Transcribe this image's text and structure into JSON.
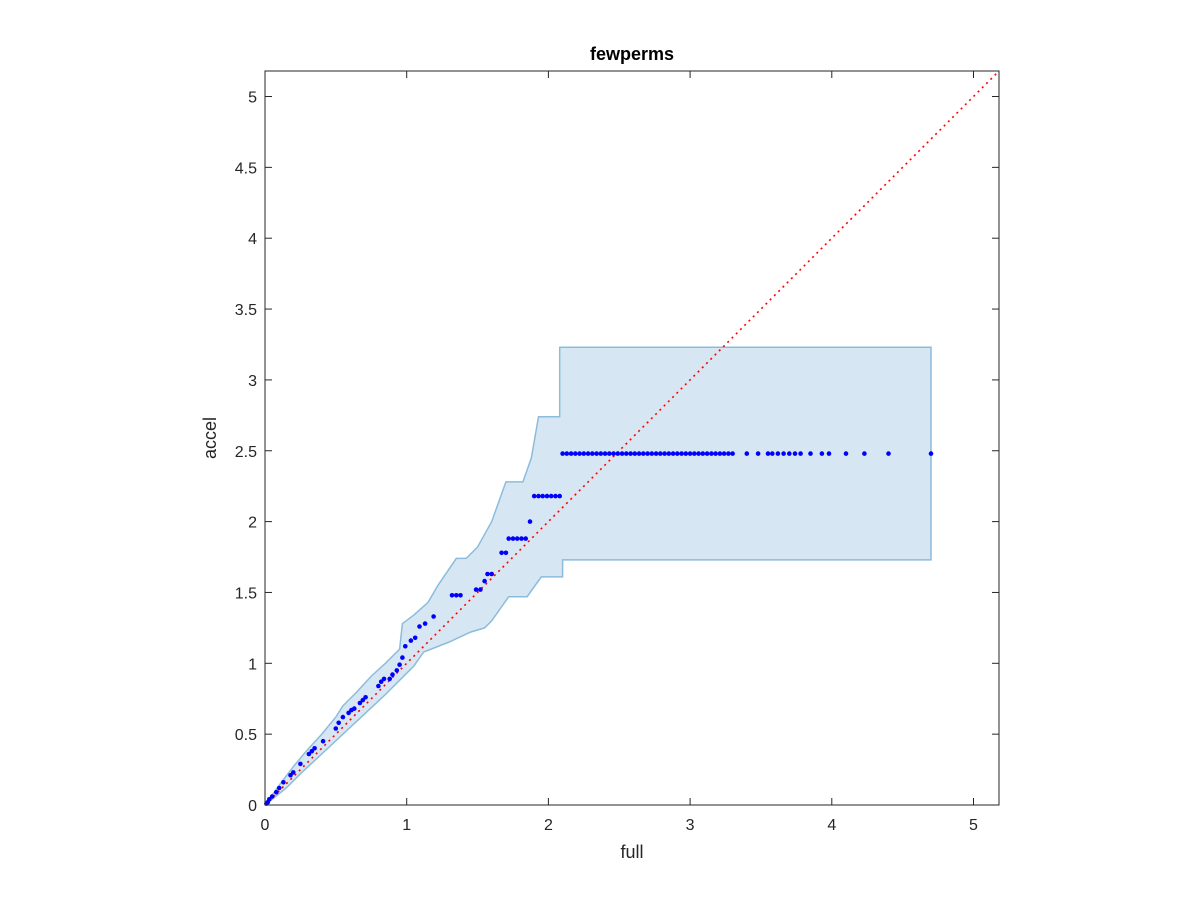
{
  "chart_data": {
    "type": "scatter",
    "title": "fewperms",
    "xlabel": "full",
    "ylabel": "accel",
    "xlim": [
      0,
      5.18
    ],
    "ylim": [
      0,
      5.18
    ],
    "xticks": [
      0,
      1,
      2,
      3,
      4,
      5
    ],
    "yticks": [
      0,
      0.5,
      1,
      1.5,
      2,
      2.5,
      3,
      3.5,
      4,
      4.5,
      5
    ],
    "xtick_labels": [
      "0",
      "1",
      "2",
      "3",
      "4",
      "5"
    ],
    "ytick_labels": [
      "0",
      "0.5",
      "1",
      "1.5",
      "2",
      "2.5",
      "3",
      "3.5",
      "4",
      "4.5",
      "5"
    ],
    "grid": false,
    "colors": {
      "points": "#0000ff",
      "band_fill": "#d6e7f3",
      "band_edge": "#8cbcdc",
      "diagonal": "#ff0000",
      "axes": "#262626"
    },
    "diagonal": {
      "x": [
        0,
        5.18
      ],
      "y": [
        0,
        5.18
      ],
      "style": "dotted"
    },
    "band": {
      "upper": [
        [
          0,
          0
        ],
        [
          0.05,
          0.07
        ],
        [
          0.1,
          0.14
        ],
        [
          0.2,
          0.27
        ],
        [
          0.3,
          0.39
        ],
        [
          0.4,
          0.5
        ],
        [
          0.5,
          0.62
        ],
        [
          0.55,
          0.7
        ],
        [
          0.65,
          0.8
        ],
        [
          0.75,
          0.91
        ],
        [
          0.85,
          1.0
        ],
        [
          0.95,
          1.1
        ],
        [
          0.97,
          1.28
        ],
        [
          1.05,
          1.34
        ],
        [
          1.15,
          1.43
        ],
        [
          1.22,
          1.55
        ],
        [
          1.35,
          1.74
        ],
        [
          1.42,
          1.74
        ],
        [
          1.5,
          1.82
        ],
        [
          1.6,
          2.0
        ],
        [
          1.7,
          2.28
        ],
        [
          1.82,
          2.28
        ],
        [
          1.88,
          2.45
        ],
        [
          1.93,
          2.74
        ],
        [
          2.08,
          2.74
        ],
        [
          2.08,
          3.23
        ],
        [
          4.7,
          3.23
        ]
      ],
      "lower": [
        [
          4.7,
          1.73
        ],
        [
          2.1,
          1.73
        ],
        [
          2.1,
          1.61
        ],
        [
          1.95,
          1.61
        ],
        [
          1.85,
          1.47
        ],
        [
          1.72,
          1.47
        ],
        [
          1.6,
          1.3
        ],
        [
          1.55,
          1.25
        ],
        [
          1.45,
          1.22
        ],
        [
          1.3,
          1.15
        ],
        [
          1.12,
          1.08
        ],
        [
          1.05,
          0.98
        ],
        [
          0.95,
          0.88
        ],
        [
          0.85,
          0.78
        ],
        [
          0.7,
          0.64
        ],
        [
          0.55,
          0.5
        ],
        [
          0.4,
          0.36
        ],
        [
          0.25,
          0.22
        ],
        [
          0.15,
          0.12
        ],
        [
          0.05,
          0.04
        ],
        [
          0,
          0
        ]
      ]
    },
    "series": [
      {
        "x": [
          0.01,
          0.02,
          0.03,
          0.05,
          0.08,
          0.1,
          0.13,
          0.18,
          0.2,
          0.25,
          0.31,
          0.33,
          0.35,
          0.41,
          0.5,
          0.52,
          0.55,
          0.59,
          0.61,
          0.63,
          0.67,
          0.69,
          0.71,
          0.8,
          0.82,
          0.84,
          0.88,
          0.9,
          0.93,
          0.95,
          0.97,
          0.99,
          1.03,
          1.06,
          1.09,
          1.13,
          1.19,
          1.32,
          1.35,
          1.38,
          1.49,
          1.52,
          1.55,
          1.57,
          1.6,
          1.67,
          1.7,
          1.72,
          1.75,
          1.78,
          1.81,
          1.84,
          1.87,
          1.9,
          1.93,
          1.96,
          1.99,
          2.02,
          2.05,
          2.08
        ],
        "y": [
          0.01,
          0.02,
          0.04,
          0.06,
          0.09,
          0.12,
          0.16,
          0.21,
          0.23,
          0.29,
          0.36,
          0.38,
          0.4,
          0.45,
          0.54,
          0.58,
          0.62,
          0.65,
          0.67,
          0.68,
          0.72,
          0.74,
          0.76,
          0.84,
          0.87,
          0.89,
          0.89,
          0.92,
          0.95,
          0.99,
          1.04,
          1.12,
          1.16,
          1.18,
          1.26,
          1.28,
          1.33,
          1.48,
          1.48,
          1.48,
          1.52,
          1.52,
          1.58,
          1.63,
          1.63,
          1.78,
          1.78,
          1.88,
          1.88,
          1.88,
          1.88,
          1.88,
          2.0,
          2.18,
          2.18,
          2.18,
          2.18,
          2.18,
          2.18,
          2.18
        ]
      },
      {
        "x": [
          2.1,
          2.13,
          2.16,
          2.19,
          2.22,
          2.25,
          2.28,
          2.31,
          2.34,
          2.37,
          2.4,
          2.43,
          2.46,
          2.49,
          2.52,
          2.55,
          2.58,
          2.61,
          2.64,
          2.67,
          2.7,
          2.73,
          2.76,
          2.79,
          2.82,
          2.85,
          2.88,
          2.91,
          2.94,
          2.97,
          3.0,
          3.03,
          3.06,
          3.09,
          3.12,
          3.15,
          3.18,
          3.21,
          3.24,
          3.27,
          3.3,
          3.4,
          3.48,
          3.55,
          3.58,
          3.62,
          3.66,
          3.7,
          3.74,
          3.78,
          3.85,
          3.93,
          3.98,
          4.1,
          4.23,
          4.4,
          4.7
        ],
        "y": [
          2.48,
          2.48,
          2.48,
          2.48,
          2.48,
          2.48,
          2.48,
          2.48,
          2.48,
          2.48,
          2.48,
          2.48,
          2.48,
          2.48,
          2.48,
          2.48,
          2.48,
          2.48,
          2.48,
          2.48,
          2.48,
          2.48,
          2.48,
          2.48,
          2.48,
          2.48,
          2.48,
          2.48,
          2.48,
          2.48,
          2.48,
          2.48,
          2.48,
          2.48,
          2.48,
          2.48,
          2.48,
          2.48,
          2.48,
          2.48,
          2.48,
          2.48,
          2.48,
          2.48,
          2.48,
          2.48,
          2.48,
          2.48,
          2.48,
          2.48,
          2.48,
          2.48,
          2.48,
          2.48,
          2.48,
          2.48,
          2.48
        ]
      }
    ]
  }
}
